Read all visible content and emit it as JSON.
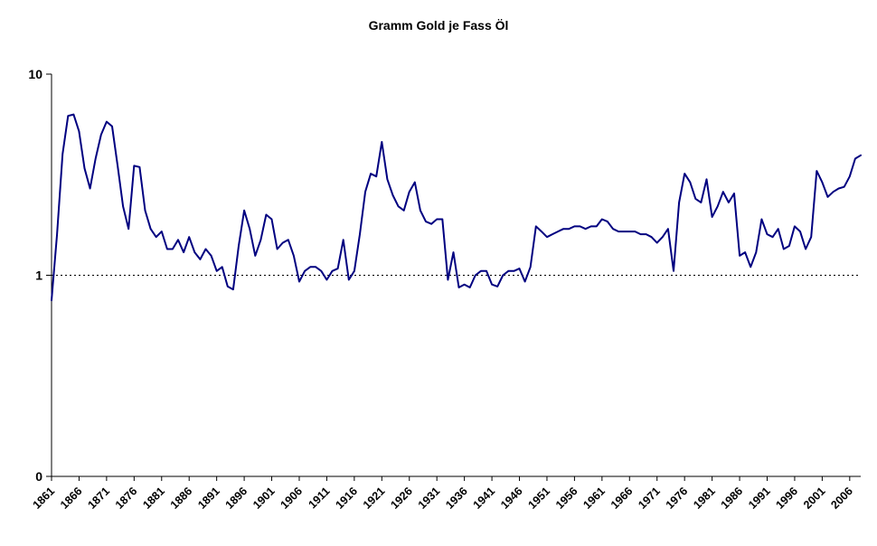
{
  "chart_data": {
    "type": "line",
    "title": "Gramm Gold je Fass Öl",
    "xlabel": "",
    "ylabel": "",
    "y_scale": "log10",
    "ylim": [
      0.1,
      10
    ],
    "y_ticks": [
      {
        "value": 0.1,
        "label": "0"
      },
      {
        "value": 1,
        "label": "1"
      },
      {
        "value": 10,
        "label": "10"
      }
    ],
    "x_range": [
      1861,
      2008
    ],
    "x_tick_interval": 5,
    "x_tick_labels": [
      "1861",
      "1866",
      "1871",
      "1876",
      "1881",
      "1886",
      "1891",
      "1896",
      "1901",
      "1906",
      "1911",
      "1916",
      "1921",
      "1926",
      "1931",
      "1936",
      "1941",
      "1946",
      "1951",
      "1956",
      "1961",
      "1966",
      "1971",
      "1976",
      "1981",
      "1986",
      "1991",
      "1996",
      "2001",
      "2006"
    ],
    "reference_line": {
      "value": 1,
      "style": "dotted",
      "color": "#000000"
    },
    "grid": false,
    "legend": false,
    "series": [
      {
        "name": "Gramm Gold je Fass Öl",
        "color": "#000080",
        "x_start": 1861,
        "x_step": 1,
        "values": [
          0.75,
          1.6,
          4.0,
          6.2,
          6.3,
          5.2,
          3.4,
          2.7,
          3.8,
          5.0,
          5.8,
          5.5,
          3.5,
          2.2,
          1.7,
          3.5,
          3.45,
          2.1,
          1.7,
          1.55,
          1.65,
          1.35,
          1.35,
          1.5,
          1.3,
          1.55,
          1.3,
          1.2,
          1.35,
          1.25,
          1.05,
          1.1,
          0.88,
          0.85,
          1.4,
          2.1,
          1.7,
          1.25,
          1.5,
          2.0,
          1.9,
          1.35,
          1.45,
          1.5,
          1.25,
          0.93,
          1.05,
          1.1,
          1.1,
          1.05,
          0.95,
          1.05,
          1.08,
          1.5,
          0.95,
          1.05,
          1.6,
          2.6,
          3.2,
          3.1,
          4.6,
          3.0,
          2.5,
          2.2,
          2.1,
          2.6,
          2.9,
          2.1,
          1.85,
          1.8,
          1.9,
          1.9,
          0.95,
          1.3,
          0.87,
          0.9,
          0.87,
          1.0,
          1.05,
          1.05,
          0.9,
          0.88,
          1.0,
          1.05,
          1.05,
          1.08,
          0.93,
          1.1,
          1.75,
          1.65,
          1.55,
          1.6,
          1.65,
          1.7,
          1.7,
          1.75,
          1.75,
          1.7,
          1.75,
          1.75,
          1.9,
          1.85,
          1.7,
          1.65,
          1.65,
          1.65,
          1.65,
          1.6,
          1.6,
          1.55,
          1.45,
          1.55,
          1.7,
          1.05,
          2.3,
          3.2,
          2.9,
          2.4,
          2.3,
          3.0,
          1.95,
          2.2,
          2.6,
          2.3,
          2.55,
          1.25,
          1.3,
          1.1,
          1.3,
          1.9,
          1.6,
          1.55,
          1.7,
          1.35,
          1.4,
          1.75,
          1.65,
          1.35,
          1.55,
          3.3,
          2.9,
          2.45,
          2.6,
          2.7,
          2.75,
          3.1,
          3.8,
          3.95
        ]
      }
    ]
  }
}
